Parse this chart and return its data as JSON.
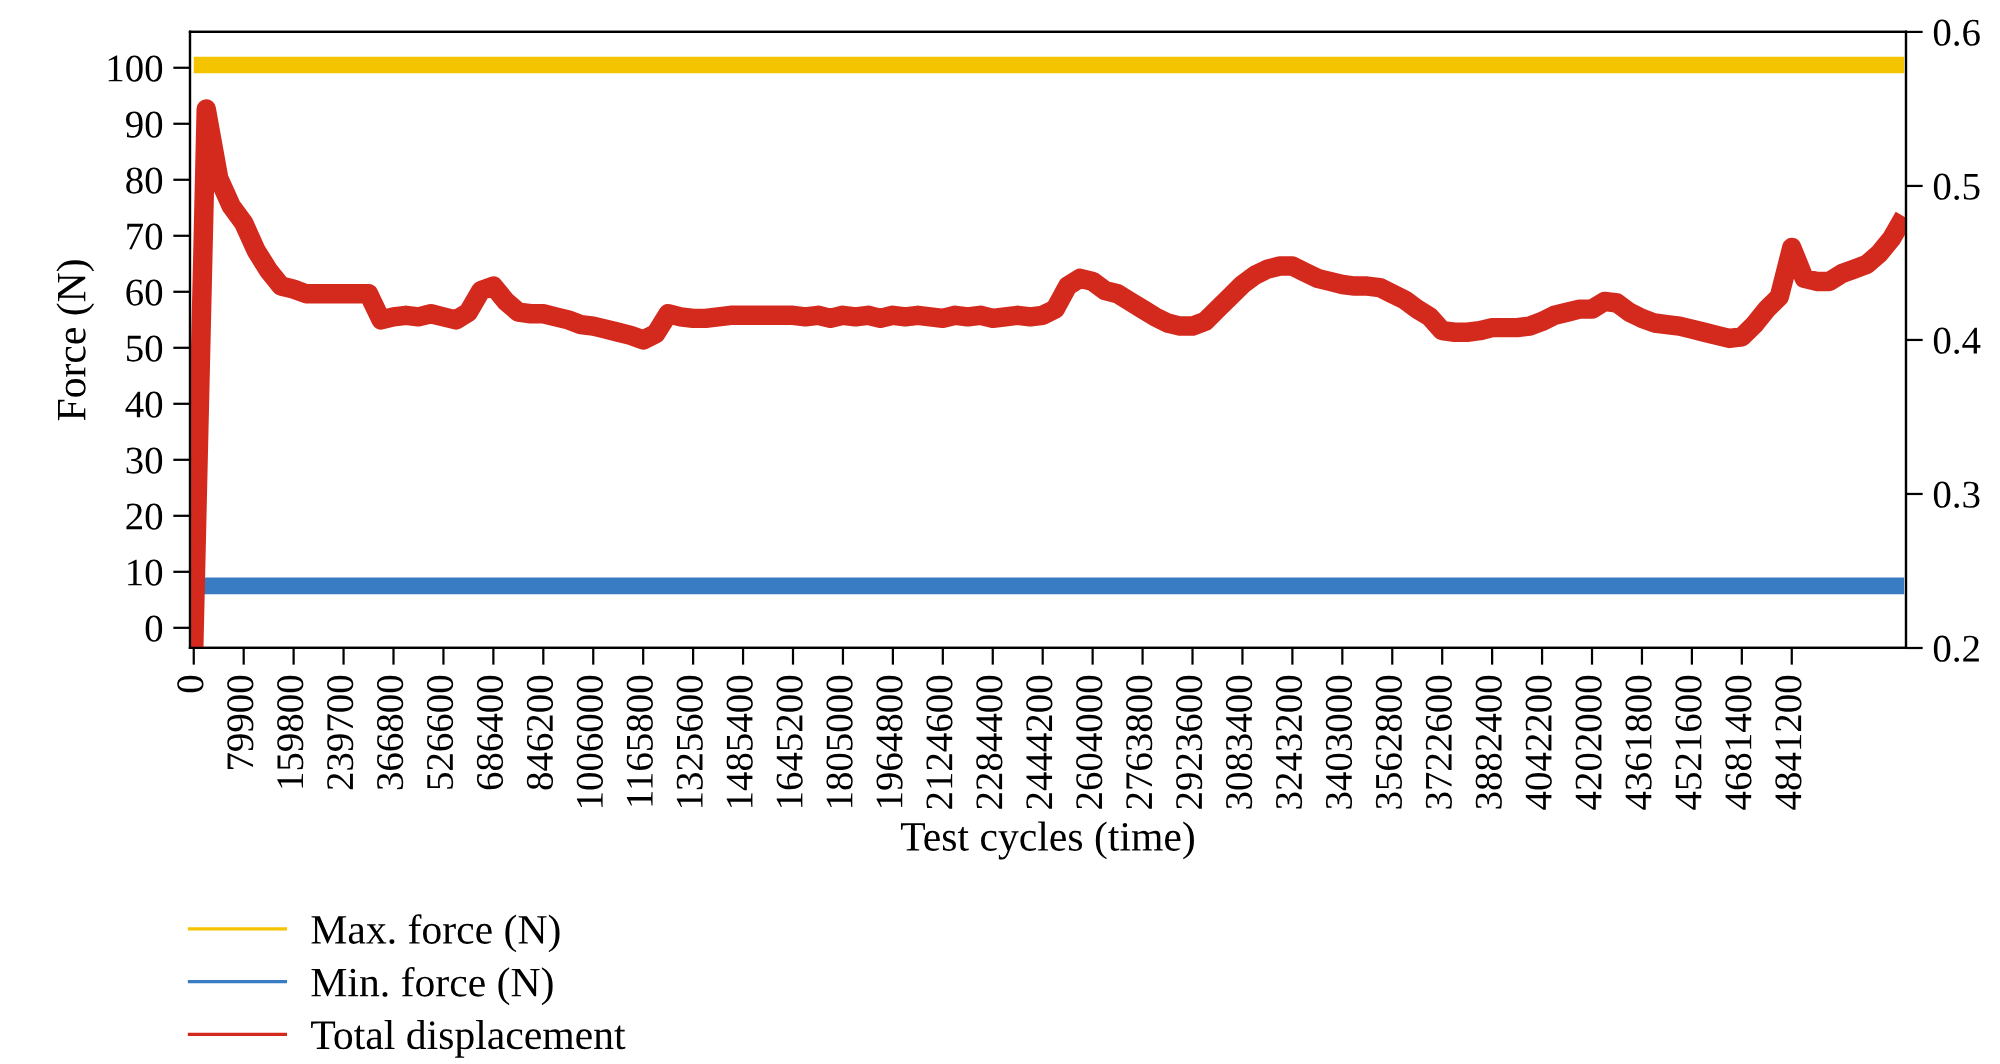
{
  "chart_data": {
    "type": "line",
    "xlabel": "Test cycles (time)",
    "ylabel": "Force (N)",
    "categories": [
      "0",
      null,
      null,
      null,
      "79900",
      null,
      null,
      null,
      "159800",
      null,
      null,
      null,
      "239700",
      null,
      null,
      null,
      "366800",
      null,
      null,
      null,
      "526600",
      null,
      null,
      null,
      "686400",
      null,
      null,
      null,
      "846200",
      null,
      null,
      null,
      "1006000",
      null,
      null,
      null,
      "1165800",
      null,
      null,
      null,
      "1325600",
      null,
      null,
      null,
      "1485400",
      null,
      null,
      null,
      "1645200",
      null,
      null,
      null,
      "1805000",
      null,
      null,
      null,
      "1964800",
      null,
      null,
      null,
      "2124600",
      null,
      null,
      null,
      "2284400",
      null,
      null,
      null,
      "2444200",
      null,
      null,
      null,
      "2604000",
      null,
      null,
      null,
      "2763800",
      null,
      null,
      null,
      "2923600",
      null,
      null,
      null,
      "3083400",
      null,
      null,
      null,
      "3243200",
      null,
      null,
      null,
      "3403000",
      null,
      null,
      null,
      "3562800",
      null,
      null,
      null,
      "3722600",
      null,
      null,
      null,
      "3882400",
      null,
      null,
      null,
      "4042200",
      null,
      null,
      null,
      "4202000",
      null,
      null,
      null,
      "4361800",
      null,
      null,
      null,
      "4521600",
      null,
      null,
      null,
      "4681400",
      null,
      null,
      null,
      "4841200",
      null,
      null,
      null,
      null,
      null,
      null,
      null,
      null,
      null
    ],
    "ylim": [
      -3.6,
      106.4
    ],
    "yticks": [
      0,
      10,
      20,
      30,
      40,
      50,
      60,
      70,
      80,
      90,
      100
    ],
    "y2lim": [
      0.2,
      0.6
    ],
    "y2ticks": [
      0.2,
      0.3,
      0.4,
      0.5,
      0.6
    ],
    "legend": "bottom left",
    "grid": false,
    "series": [
      {
        "name": "Max. force (N)",
        "color": "#f5c400",
        "values": [
          100.5,
          100.5,
          100.5,
          100.5,
          100.5,
          100.5,
          100.5,
          100.5,
          100.5,
          100.5,
          100.5,
          100.5,
          100.5,
          100.5,
          100.5,
          100.5,
          100.5,
          100.5,
          100.5,
          100.5,
          100.5,
          100.5,
          100.5,
          100.5,
          100.5,
          100.5,
          100.5,
          100.5,
          100.5,
          100.5,
          100.5,
          100.5,
          100.5,
          100.5,
          100.5,
          100.5,
          100.5,
          100.5,
          100.5,
          100.5,
          100.5,
          100.5,
          100.5,
          100.5,
          100.5,
          100.5,
          100.5,
          100.5,
          100.5,
          100.5,
          100.5,
          100.5,
          100.5,
          100.5,
          100.5,
          100.5,
          100.5,
          100.5,
          100.5,
          100.5,
          100.5,
          100.5,
          100.5,
          100.5,
          100.5,
          100.5,
          100.5,
          100.5,
          100.5,
          100.5,
          100.5,
          100.5,
          100.5,
          100.5,
          100.5,
          100.5,
          100.5,
          100.5,
          100.5,
          100.5,
          100.5,
          100.5,
          100.5,
          100.5,
          100.5,
          100.5,
          100.5,
          100.5,
          100.5,
          100.5,
          100.5,
          100.5,
          100.5,
          100.5,
          100.5,
          100.5,
          100.5,
          100.5,
          100.5,
          100.5,
          100.5,
          100.5,
          100.5,
          100.5,
          100.5,
          100.5,
          100.5,
          100.5,
          100.5,
          100.5,
          100.5,
          100.5,
          100.5,
          100.5,
          100.5,
          100.5,
          100.5,
          100.5,
          100.5,
          100.5,
          100.5,
          100.5,
          100.5,
          100.5,
          100.5,
          100.5,
          100.5,
          100.5,
          100.5,
          100.5,
          100.5,
          100.5,
          100.5,
          100.5,
          100.5,
          100.5,
          100.5,
          100.5
        ]
      },
      {
        "name": "Min. force (N)",
        "color": "#3a7cc4",
        "values": [
          7.5,
          7.5,
          7.5,
          7.5,
          7.5,
          7.5,
          7.5,
          7.5,
          7.5,
          7.5,
          7.5,
          7.5,
          7.5,
          7.5,
          7.5,
          7.5,
          7.5,
          7.5,
          7.5,
          7.5,
          7.5,
          7.5,
          7.5,
          7.5,
          7.5,
          7.5,
          7.5,
          7.5,
          7.5,
          7.5,
          7.5,
          7.5,
          7.5,
          7.5,
          7.5,
          7.5,
          7.5,
          7.5,
          7.5,
          7.5,
          7.5,
          7.5,
          7.5,
          7.5,
          7.5,
          7.5,
          7.5,
          7.5,
          7.5,
          7.5,
          7.5,
          7.5,
          7.5,
          7.5,
          7.5,
          7.5,
          7.5,
          7.5,
          7.5,
          7.5,
          7.5,
          7.5,
          7.5,
          7.5,
          7.5,
          7.5,
          7.5,
          7.5,
          7.5,
          7.5,
          7.5,
          7.5,
          7.5,
          7.5,
          7.5,
          7.5,
          7.5,
          7.5,
          7.5,
          7.5,
          7.5,
          7.5,
          7.5,
          7.5,
          7.5,
          7.5,
          7.5,
          7.5,
          7.5,
          7.5,
          7.5,
          7.5,
          7.5,
          7.5,
          7.5,
          7.5,
          7.5,
          7.5,
          7.5,
          7.5,
          7.5,
          7.5,
          7.5,
          7.5,
          7.5,
          7.5,
          7.5,
          7.5,
          7.5,
          7.5,
          7.5,
          7.5,
          7.5,
          7.5,
          7.5,
          7.5,
          7.5,
          7.5,
          7.5,
          7.5,
          7.5,
          7.5,
          7.5,
          7.5,
          7.5,
          7.5,
          7.5,
          7.5,
          7.5,
          7.5,
          7.5,
          7.5,
          7.5,
          7.5,
          7.5,
          7.5,
          7.5,
          7.5
        ]
      },
      {
        "name": "Total displacement",
        "color": "#d42a1e",
        "axis": "y2",
        "values": [
          0.2,
          0.55,
          0.505,
          0.487,
          0.476,
          0.458,
          0.445,
          0.435,
          0.433,
          0.43,
          0.43,
          0.43,
          0.43,
          0.43,
          0.43,
          0.413,
          0.415,
          0.416,
          0.415,
          0.417,
          0.415,
          0.413,
          0.418,
          0.432,
          0.435,
          0.425,
          0.418,
          0.417,
          0.417,
          0.415,
          0.413,
          0.41,
          0.409,
          0.407,
          0.405,
          0.403,
          0.4,
          0.404,
          0.417,
          0.415,
          0.414,
          0.414,
          0.415,
          0.416,
          0.416,
          0.416,
          0.416,
          0.416,
          0.416,
          0.415,
          0.416,
          0.414,
          0.416,
          0.415,
          0.416,
          0.414,
          0.416,
          0.415,
          0.416,
          0.415,
          0.414,
          0.416,
          0.415,
          0.416,
          0.414,
          0.415,
          0.416,
          0.415,
          0.416,
          0.42,
          0.435,
          0.44,
          0.438,
          0.432,
          0.43,
          0.425,
          0.42,
          0.415,
          0.411,
          0.409,
          0.409,
          0.412,
          0.42,
          0.428,
          0.436,
          0.442,
          0.446,
          0.448,
          0.448,
          0.444,
          0.44,
          0.438,
          0.436,
          0.435,
          0.435,
          0.434,
          0.43,
          0.426,
          0.42,
          0.415,
          0.406,
          0.405,
          0.405,
          0.406,
          0.408,
          0.408,
          0.408,
          0.409,
          0.412,
          0.416,
          0.418,
          0.42,
          0.42,
          0.425,
          0.424,
          0.418,
          0.414,
          0.411,
          0.41,
          0.409,
          0.407,
          0.405,
          0.403,
          0.401,
          0.402,
          0.41,
          0.42,
          0.428,
          0.46,
          0.44,
          0.438,
          0.438,
          0.443,
          0.446,
          0.449,
          0.456,
          0.466,
          0.48
        ]
      }
    ]
  }
}
